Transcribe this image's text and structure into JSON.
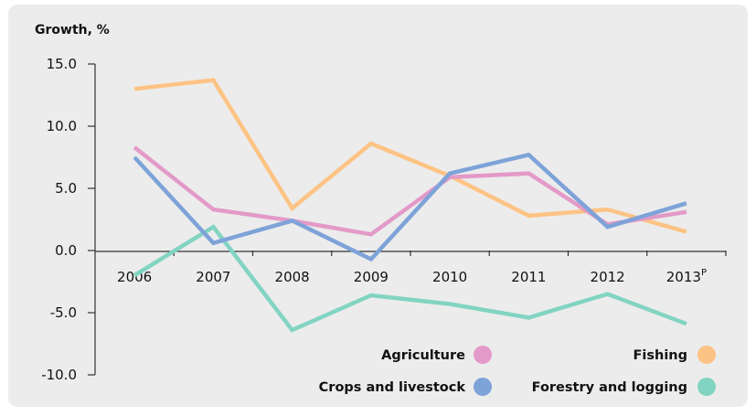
{
  "chart_data": {
    "type": "line",
    "ylabel": "Growth, %",
    "xlabel": "",
    "categories": [
      "2006",
      "2007",
      "2008",
      "2009",
      "2010",
      "2011",
      "2012",
      "2013"
    ],
    "category_superscripts": [
      "",
      "",
      "",
      "",
      "",
      "",
      "",
      "P"
    ],
    "ylim": [
      -10,
      15
    ],
    "yticks": [
      "15.0",
      "10.0",
      "5.0",
      "0.0",
      "-5.0",
      "-10.0"
    ],
    "ytick_values": [
      15,
      10,
      5,
      0,
      -5,
      -10
    ],
    "grid": false,
    "legend_position": "bottom-right",
    "series": [
      {
        "name": "Agriculture",
        "color": "#e39ac8",
        "values": [
          8.3,
          3.3,
          2.4,
          1.3,
          5.9,
          6.2,
          2.1,
          3.1
        ]
      },
      {
        "name": "Fishing",
        "color": "#fdc384",
        "values": [
          13.0,
          13.7,
          3.4,
          8.6,
          6.0,
          2.8,
          3.3,
          1.5
        ]
      },
      {
        "name": "Crops and livestock",
        "color": "#7ea3d8",
        "values": [
          7.5,
          0.6,
          2.4,
          -0.7,
          6.2,
          7.7,
          1.9,
          3.8
        ]
      },
      {
        "name": "Forestry and logging",
        "color": "#82d4c2",
        "values": [
          -2.0,
          1.9,
          -6.4,
          -3.6,
          -4.3,
          -5.4,
          -3.5,
          -5.9
        ]
      }
    ],
    "draw_order": [
      "Fishing",
      "Forestry and logging",
      "Agriculture",
      "Crops and livestock"
    ]
  }
}
